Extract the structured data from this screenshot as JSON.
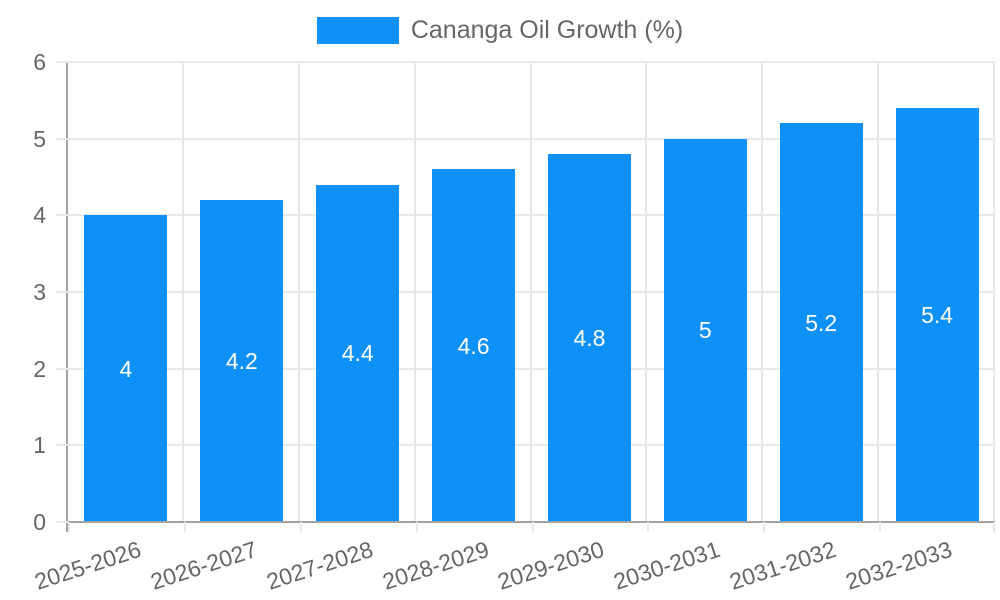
{
  "chart_data": {
    "type": "bar",
    "title": "",
    "series_name": "Cananga Oil Growth (%)",
    "categories": [
      "2025-2026",
      "2026-2027",
      "2027-2028",
      "2028-2029",
      "2029-2030",
      "2030-2031",
      "2031-2032",
      "2032-2033"
    ],
    "values": [
      4,
      4.2,
      4.4,
      4.6,
      4.8,
      5,
      5.2,
      5.4
    ],
    "value_labels": [
      "4",
      "4.2",
      "4.4",
      "4.6",
      "4.8",
      "5",
      "5.2",
      "5.4"
    ],
    "xlabel": "",
    "ylabel": "",
    "ylim": [
      0,
      6
    ],
    "yticks": [
      0,
      1,
      2,
      3,
      4,
      5,
      6
    ],
    "grid": true,
    "legend_position": "top",
    "colors": {
      "bar": "#0d90f8",
      "grid": "#e8e8e8",
      "axis": "#a3a3a3",
      "tick_text": "#666666",
      "legend_text": "#666666",
      "value_label": "#ffffff"
    }
  }
}
